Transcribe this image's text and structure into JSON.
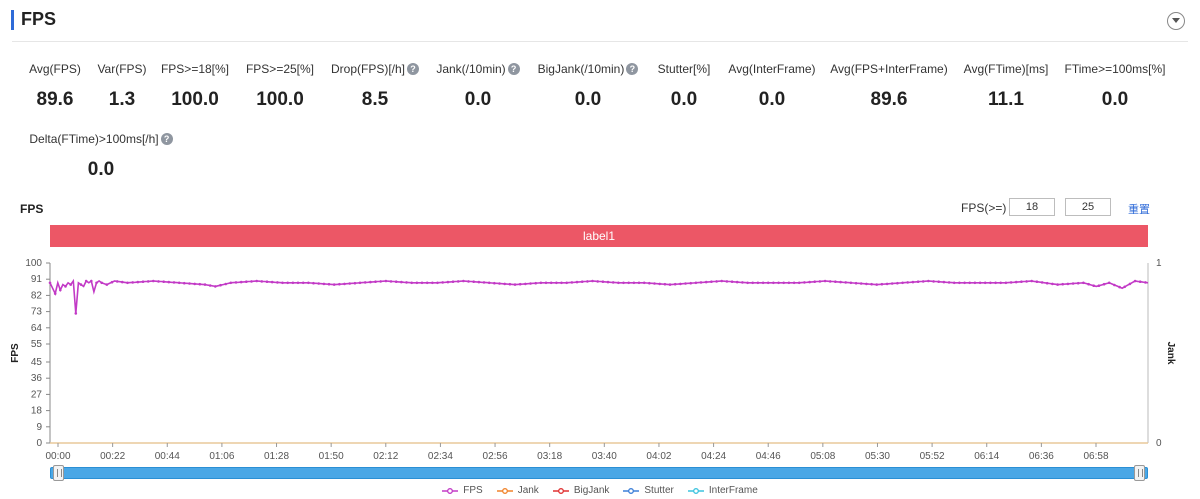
{
  "header": {
    "title": "FPS"
  },
  "metrics": [
    {
      "label": "Avg(FPS)",
      "value": "89.6",
      "help": false
    },
    {
      "label": "Var(FPS)",
      "value": "1.3",
      "help": false
    },
    {
      "label": "FPS>=18[%]",
      "value": "100.0",
      "help": false
    },
    {
      "label": "FPS>=25[%]",
      "value": "100.0",
      "help": false
    },
    {
      "label": "Drop(FPS)[/h]",
      "value": "8.5",
      "help": true
    },
    {
      "label": "Jank(/10min)",
      "value": "0.0",
      "help": true
    },
    {
      "label": "BigJank(/10min)",
      "value": "0.0",
      "help": true
    },
    {
      "label": "Stutter[%]",
      "value": "0.0",
      "help": false
    },
    {
      "label": "Avg(InterFrame)",
      "value": "0.0",
      "help": false
    },
    {
      "label": "Avg(FPS+InterFrame)",
      "value": "89.6",
      "help": false
    },
    {
      "label": "Avg(FTime)[ms]",
      "value": "11.1",
      "help": false
    },
    {
      "label": "FTime>=100ms[%]",
      "value": "0.0",
      "help": false
    },
    {
      "label": "Delta(FTime)>100ms[/h]",
      "value": "0.0",
      "help": true
    }
  ],
  "chart_controls": {
    "title": "FPS",
    "threshold_label": "FPS(>=)",
    "threshold_low": "18",
    "threshold_high": "25",
    "reset_label": "重置",
    "band_label": "label1"
  },
  "colors": {
    "fps": "#c23ac6",
    "jank": "#f0832a",
    "bigjank": "#e03131",
    "stutter": "#3b7fd8",
    "interframe": "#3cc3de",
    "band": "#ec5766"
  },
  "chart_data": {
    "type": "line",
    "ylabel": "FPS",
    "y2label": "Jank",
    "yticks": [
      0,
      9,
      18,
      27,
      36,
      45,
      55,
      64,
      73,
      82,
      91,
      100
    ],
    "ylim": [
      0,
      100
    ],
    "y2ticks": [
      0,
      1
    ],
    "x_tick_labels": [
      "00:00",
      "00:22",
      "00:44",
      "01:06",
      "01:28",
      "01:50",
      "02:12",
      "02:34",
      "02:56",
      "03:18",
      "03:40",
      "04:02",
      "04:24",
      "04:46",
      "05:08",
      "05:30",
      "05:52",
      "06:14",
      "06:36",
      "06:58"
    ],
    "duration_seconds": 425,
    "baseline_fps": 89.5,
    "series": [
      {
        "name": "FPS",
        "x_seconds": [
          0,
          1,
          2,
          3,
          4,
          5,
          6,
          7,
          8,
          9,
          10,
          11,
          12,
          13,
          14,
          15,
          16,
          17,
          18,
          19,
          20,
          22,
          25,
          30,
          40,
          50,
          60,
          64,
          70,
          80,
          90,
          100,
          110,
          120,
          130,
          140,
          150,
          160,
          170,
          180,
          190,
          200,
          210,
          220,
          230,
          240,
          250,
          260,
          270,
          280,
          290,
          300,
          310,
          320,
          330,
          340,
          350,
          360,
          370,
          380,
          390,
          400,
          405,
          410,
          415,
          420,
          425
        ],
        "values": [
          89,
          86,
          83,
          89,
          85,
          88,
          87,
          89,
          88,
          90,
          72,
          89,
          88,
          87,
          90,
          89,
          90,
          84,
          89,
          90,
          89,
          88,
          90,
          89,
          90,
          89,
          88,
          87,
          89,
          90,
          89,
          89,
          88,
          89,
          90,
          89,
          89,
          90,
          89,
          88,
          89,
          89,
          90,
          89,
          89,
          88,
          89,
          90,
          89,
          89,
          89,
          90,
          89,
          88,
          89,
          90,
          89,
          89,
          89,
          90,
          88,
          89,
          87,
          89,
          86,
          90,
          89
        ]
      },
      {
        "name": "Jank",
        "x_seconds": [],
        "values": []
      },
      {
        "name": "BigJank",
        "x_seconds": [],
        "values": []
      },
      {
        "name": "Stutter",
        "x_seconds": [],
        "values": []
      },
      {
        "name": "InterFrame",
        "x_seconds": [],
        "values": []
      }
    ],
    "legend": [
      "FPS",
      "Jank",
      "BigJank",
      "Stutter",
      "InterFrame"
    ],
    "legend_position": "bottom-center"
  }
}
